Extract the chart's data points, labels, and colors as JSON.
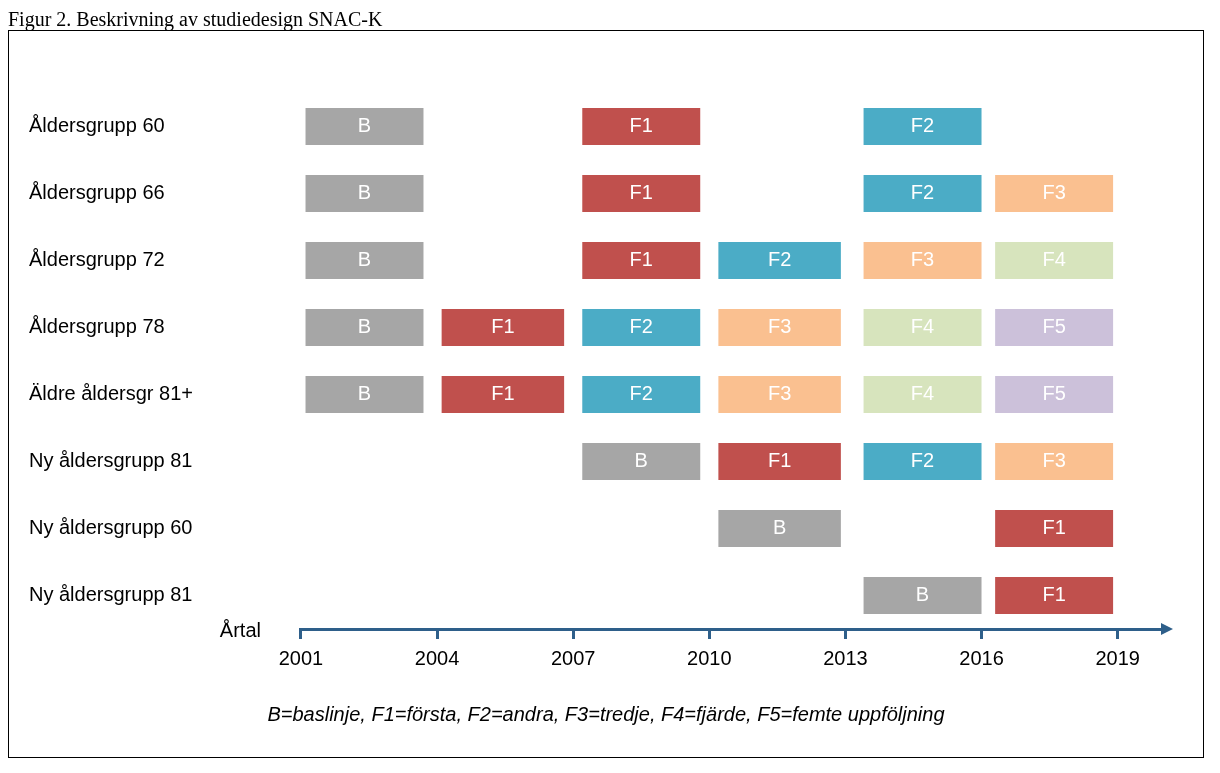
{
  "chart_data": {
    "type": "bar",
    "orientation": "horizontal",
    "title": "Figur 2. Beskrivning av studiedesign SNAC-K",
    "xlabel": "Årtal",
    "categories": [
      "Åldersgrupp 60",
      "Åldersgrupp 66",
      "Åldersgrupp 72",
      "Åldersgrupp 78",
      "Äldre åldersgr 81+",
      "Ny åldersgrupp 81",
      "Ny åldersgrupp 60",
      "Ny åldersgrupp 81"
    ],
    "series": [
      {
        "name": "B",
        "color": "#a6a6a6",
        "base": [
          2001.1,
          2001.1,
          2001.1,
          2001.1,
          2001.1,
          2007.2,
          2010.2,
          2013.4
        ],
        "values": [
          2.6,
          2.6,
          2.6,
          2.6,
          2.6,
          2.6,
          2.7,
          2.6
        ]
      },
      {
        "name": "F1",
        "color": "#c0504d",
        "base": [
          2007.2,
          2007.2,
          2007.2,
          2004.1,
          2004.1,
          2010.2,
          2016.3,
          2016.3
        ],
        "values": [
          2.6,
          2.6,
          2.6,
          2.7,
          2.7,
          2.7,
          2.6,
          2.6
        ]
      },
      {
        "name": "F2",
        "color": "#4bacc6",
        "base": [
          2013.4,
          2013.4,
          2010.2,
          2007.2,
          2007.2,
          2013.4,
          null,
          null
        ],
        "values": [
          2.6,
          2.6,
          2.7,
          2.6,
          2.6,
          2.6,
          null,
          null
        ]
      },
      {
        "name": "F3",
        "color": "#fac090",
        "base": [
          null,
          2016.3,
          2013.4,
          2010.2,
          2010.2,
          2016.3,
          null,
          null
        ],
        "values": [
          null,
          2.6,
          2.6,
          2.7,
          2.7,
          2.6,
          null,
          null
        ]
      },
      {
        "name": "F4",
        "color": "#d7e4bd",
        "base": [
          null,
          null,
          2016.3,
          2013.4,
          2013.4,
          null,
          null,
          null
        ],
        "values": [
          null,
          null,
          2.6,
          2.6,
          2.6,
          null,
          null,
          null
        ]
      },
      {
        "name": "F5",
        "color": "#ccc1da",
        "base": [
          null,
          null,
          null,
          2016.3,
          2016.3,
          null,
          null,
          null
        ],
        "values": [
          null,
          null,
          null,
          2.6,
          2.6,
          null,
          null,
          null
        ]
      }
    ],
    "xlim": [
      2001,
      2020
    ],
    "xticks": [
      2001,
      2004,
      2007,
      2010,
      2013,
      2016,
      2019
    ],
    "grid": false,
    "legend": false,
    "annotations": [
      "B=baslinje, F1=första, F2=andra, F3=tredje, F4=fjärde, F5=femte uppföljning"
    ]
  }
}
